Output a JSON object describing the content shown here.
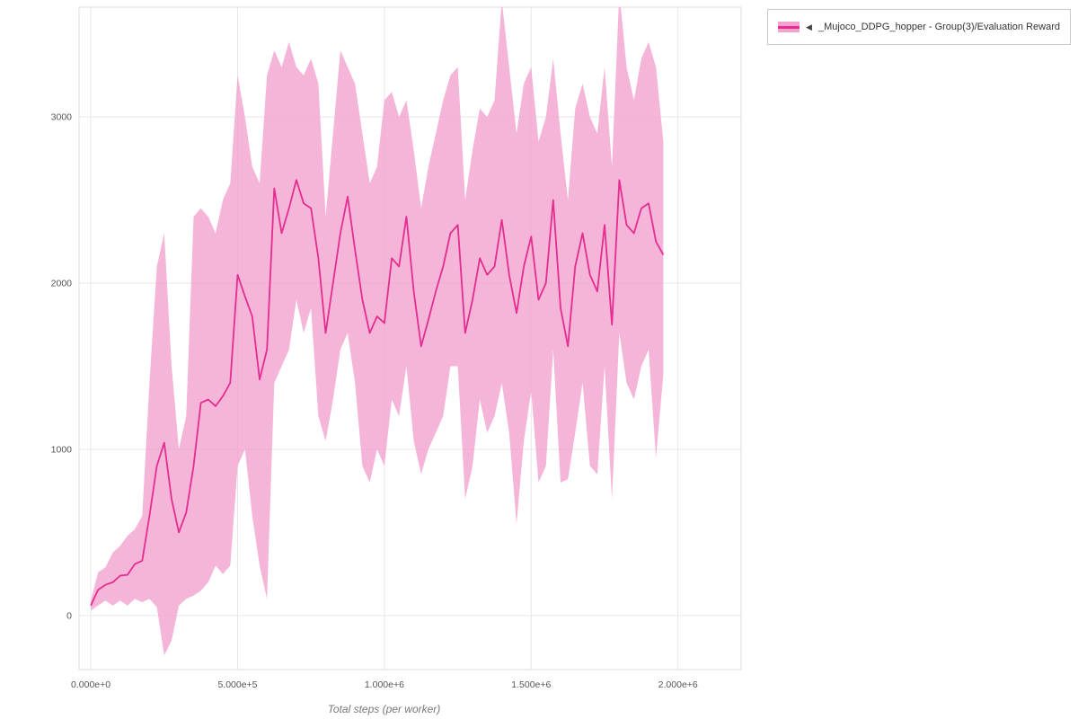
{
  "page": {
    "background": "#ffffff"
  },
  "legend": {
    "arrow": "◀",
    "label": "_Mujoco_DDPG_hopper - Group(3)/Evaluation Reward",
    "series_color": "#e32d91",
    "band_color": "#f2a3ce"
  },
  "chart_data": {
    "type": "line",
    "title": "",
    "xlabel": "Total steps (per worker)",
    "ylabel": "",
    "xlim": [
      -40000,
      2215000
    ],
    "ylim": [
      -325,
      3660
    ],
    "grid": true,
    "legend_position": "top-right",
    "x_ticks": [
      {
        "value": 0,
        "label": "0.000e+0"
      },
      {
        "value": 500000,
        "label": "5.000e+5"
      },
      {
        "value": 1000000,
        "label": "1.000e+6"
      },
      {
        "value": 1500000,
        "label": "1.500e+6"
      },
      {
        "value": 2000000,
        "label": "2.000e+6"
      }
    ],
    "y_ticks": [
      {
        "value": 0,
        "label": "0"
      },
      {
        "value": 1000,
        "label": "1000"
      },
      {
        "value": 2000,
        "label": "2000"
      },
      {
        "value": 3000,
        "label": "3000"
      }
    ],
    "series": [
      {
        "name": "_Mujoco_DDPG_hopper - Group(3)/Evaluation Reward",
        "color": "#e32d91",
        "band_color": "#f2a3ce",
        "x": [
          0,
          25000,
          50000,
          75000,
          100000,
          125000,
          150000,
          175000,
          200000,
          225000,
          250000,
          275000,
          300000,
          325000,
          350000,
          375000,
          400000,
          425000,
          450000,
          475000,
          500000,
          525000,
          550000,
          575000,
          600000,
          625000,
          650000,
          675000,
          700000,
          725000,
          750000,
          775000,
          800000,
          825000,
          850000,
          875000,
          900000,
          925000,
          950000,
          975000,
          1000000,
          1025000,
          1050000,
          1075000,
          1100000,
          1125000,
          1150000,
          1175000,
          1200000,
          1225000,
          1250000,
          1275000,
          1300000,
          1325000,
          1350000,
          1375000,
          1400000,
          1425000,
          1450000,
          1475000,
          1500000,
          1525000,
          1550000,
          1575000,
          1600000,
          1625000,
          1650000,
          1675000,
          1700000,
          1725000,
          1750000,
          1775000,
          1800000,
          1825000,
          1850000,
          1875000,
          1900000,
          1925000,
          1950000
        ],
        "mean": [
          60,
          155,
          185,
          200,
          240,
          245,
          310,
          330,
          600,
          900,
          1040,
          700,
          500,
          620,
          900,
          1280,
          1300,
          1260,
          1320,
          1400,
          2050,
          1920,
          1800,
          1420,
          1600,
          2570,
          2300,
          2450,
          2620,
          2480,
          2450,
          2150,
          1700,
          2000,
          2300,
          2520,
          2200,
          1900,
          1700,
          1800,
          1760,
          2150,
          2100,
          2400,
          1950,
          1620,
          1780,
          1950,
          2100,
          2300,
          2350,
          1700,
          1900,
          2150,
          2050,
          2100,
          2380,
          2050,
          1820,
          2100,
          2280,
          1900,
          2000,
          2500,
          1850,
          1620,
          2100,
          2300,
          2050,
          1950,
          2350,
          1750,
          2620,
          2350,
          2300,
          2450,
          2480,
          2250,
          2170
        ],
        "lower": [
          30,
          60,
          90,
          60,
          90,
          60,
          100,
          80,
          100,
          50,
          -240,
          -150,
          60,
          100,
          120,
          150,
          200,
          300,
          250,
          300,
          900,
          1000,
          600,
          300,
          100,
          1400,
          1500,
          1600,
          1900,
          1700,
          1850,
          1200,
          1050,
          1300,
          1600,
          1700,
          1400,
          900,
          800,
          1000,
          900,
          1300,
          1200,
          1500,
          1050,
          850,
          1000,
          1100,
          1200,
          1500,
          1500,
          700,
          900,
          1300,
          1100,
          1200,
          1400,
          1100,
          550,
          1050,
          1350,
          800,
          900,
          1600,
          800,
          820,
          1100,
          1400,
          900,
          850,
          1500,
          700,
          1700,
          1400,
          1300,
          1500,
          1600,
          950,
          1450
        ],
        "upper": [
          90,
          260,
          290,
          380,
          420,
          480,
          520,
          600,
          1400,
          2100,
          2300,
          1500,
          1000,
          1200,
          2400,
          2450,
          2400,
          2300,
          2500,
          2600,
          3250,
          3000,
          2700,
          2600,
          3250,
          3400,
          3300,
          3450,
          3300,
          3250,
          3350,
          3200,
          2400,
          2900,
          3400,
          3300,
          3200,
          2900,
          2600,
          2700,
          3100,
          3150,
          3000,
          3100,
          2800,
          2450,
          2700,
          2900,
          3100,
          3250,
          3300,
          2500,
          2800,
          3050,
          3000,
          3100,
          3700,
          3300,
          2900,
          3200,
          3300,
          2850,
          3000,
          3350,
          2900,
          2500,
          3050,
          3200,
          3000,
          2900,
          3300,
          2700,
          3750,
          3300,
          3100,
          3350,
          3450,
          3300,
          2850
        ]
      }
    ]
  }
}
